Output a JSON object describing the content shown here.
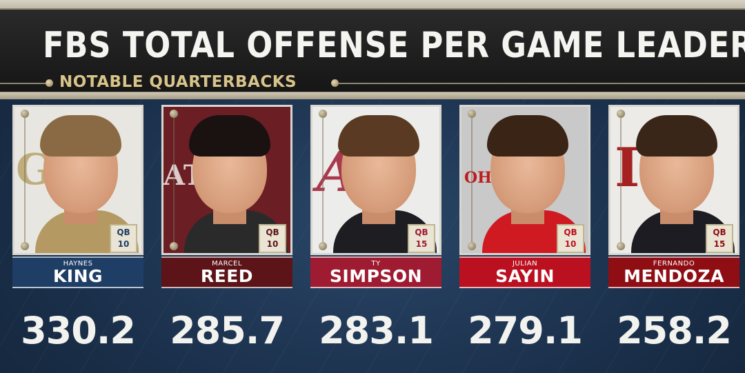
{
  "header": {
    "title": "FBS TOTAL OFFENSE PER GAME LEADERS",
    "subtitle": "NOTABLE QUARTERBACKS"
  },
  "players": [
    {
      "first": "HAYNES",
      "last": "KING",
      "position": "QB",
      "number": "10",
      "logo_text": "GT",
      "logo_color": "#b8a46c",
      "photo_bg": "#e8e6e0",
      "plate_color": "#1f3e66",
      "hair_color": "#8a6a44",
      "body_color": "#b49a62",
      "badge_text_color": "#1f3e66",
      "stat": "330.2"
    },
    {
      "first": "MARCEL",
      "last": "REED",
      "position": "QB",
      "number": "10",
      "logo_text": "ATM",
      "logo_color": "#f0ece8",
      "photo_bg": "#6b1e24",
      "plate_color": "#5c1418",
      "hair_color": "#1a1210",
      "body_color": "#2a2a2a",
      "badge_text_color": "#5c1418",
      "stat": "285.7"
    },
    {
      "first": "TY",
      "last": "SIMPSON",
      "position": "QB",
      "number": "15",
      "logo_text": "A",
      "logo_color": "#9e1b32",
      "photo_bg": "#ececea",
      "plate_color": "#9e1b32",
      "hair_color": "#5a3a22",
      "body_color": "#1e1e22",
      "badge_text_color": "#9e1b32",
      "stat": "283.1"
    },
    {
      "first": "JULIAN",
      "last": "SAYIN",
      "position": "QB",
      "number": "10",
      "logo_text": "OHIO",
      "logo_color": "#bb0000",
      "photo_bg": "#c9c9c9",
      "plate_color": "#bb1020",
      "hair_color": "#3a2416",
      "body_color": "#d01a22",
      "badge_text_color": "#bb1020",
      "stat": "279.1"
    },
    {
      "first": "FERNANDO",
      "last": "MENDOZA",
      "position": "QB",
      "number": "15",
      "logo_text": "IU",
      "logo_color": "#990000",
      "photo_bg": "#ecebe8",
      "plate_color": "#8f0e14",
      "hair_color": "#3a2618",
      "body_color": "#1c1c22",
      "badge_text_color": "#8f0e14",
      "stat": "258.2"
    }
  ]
}
